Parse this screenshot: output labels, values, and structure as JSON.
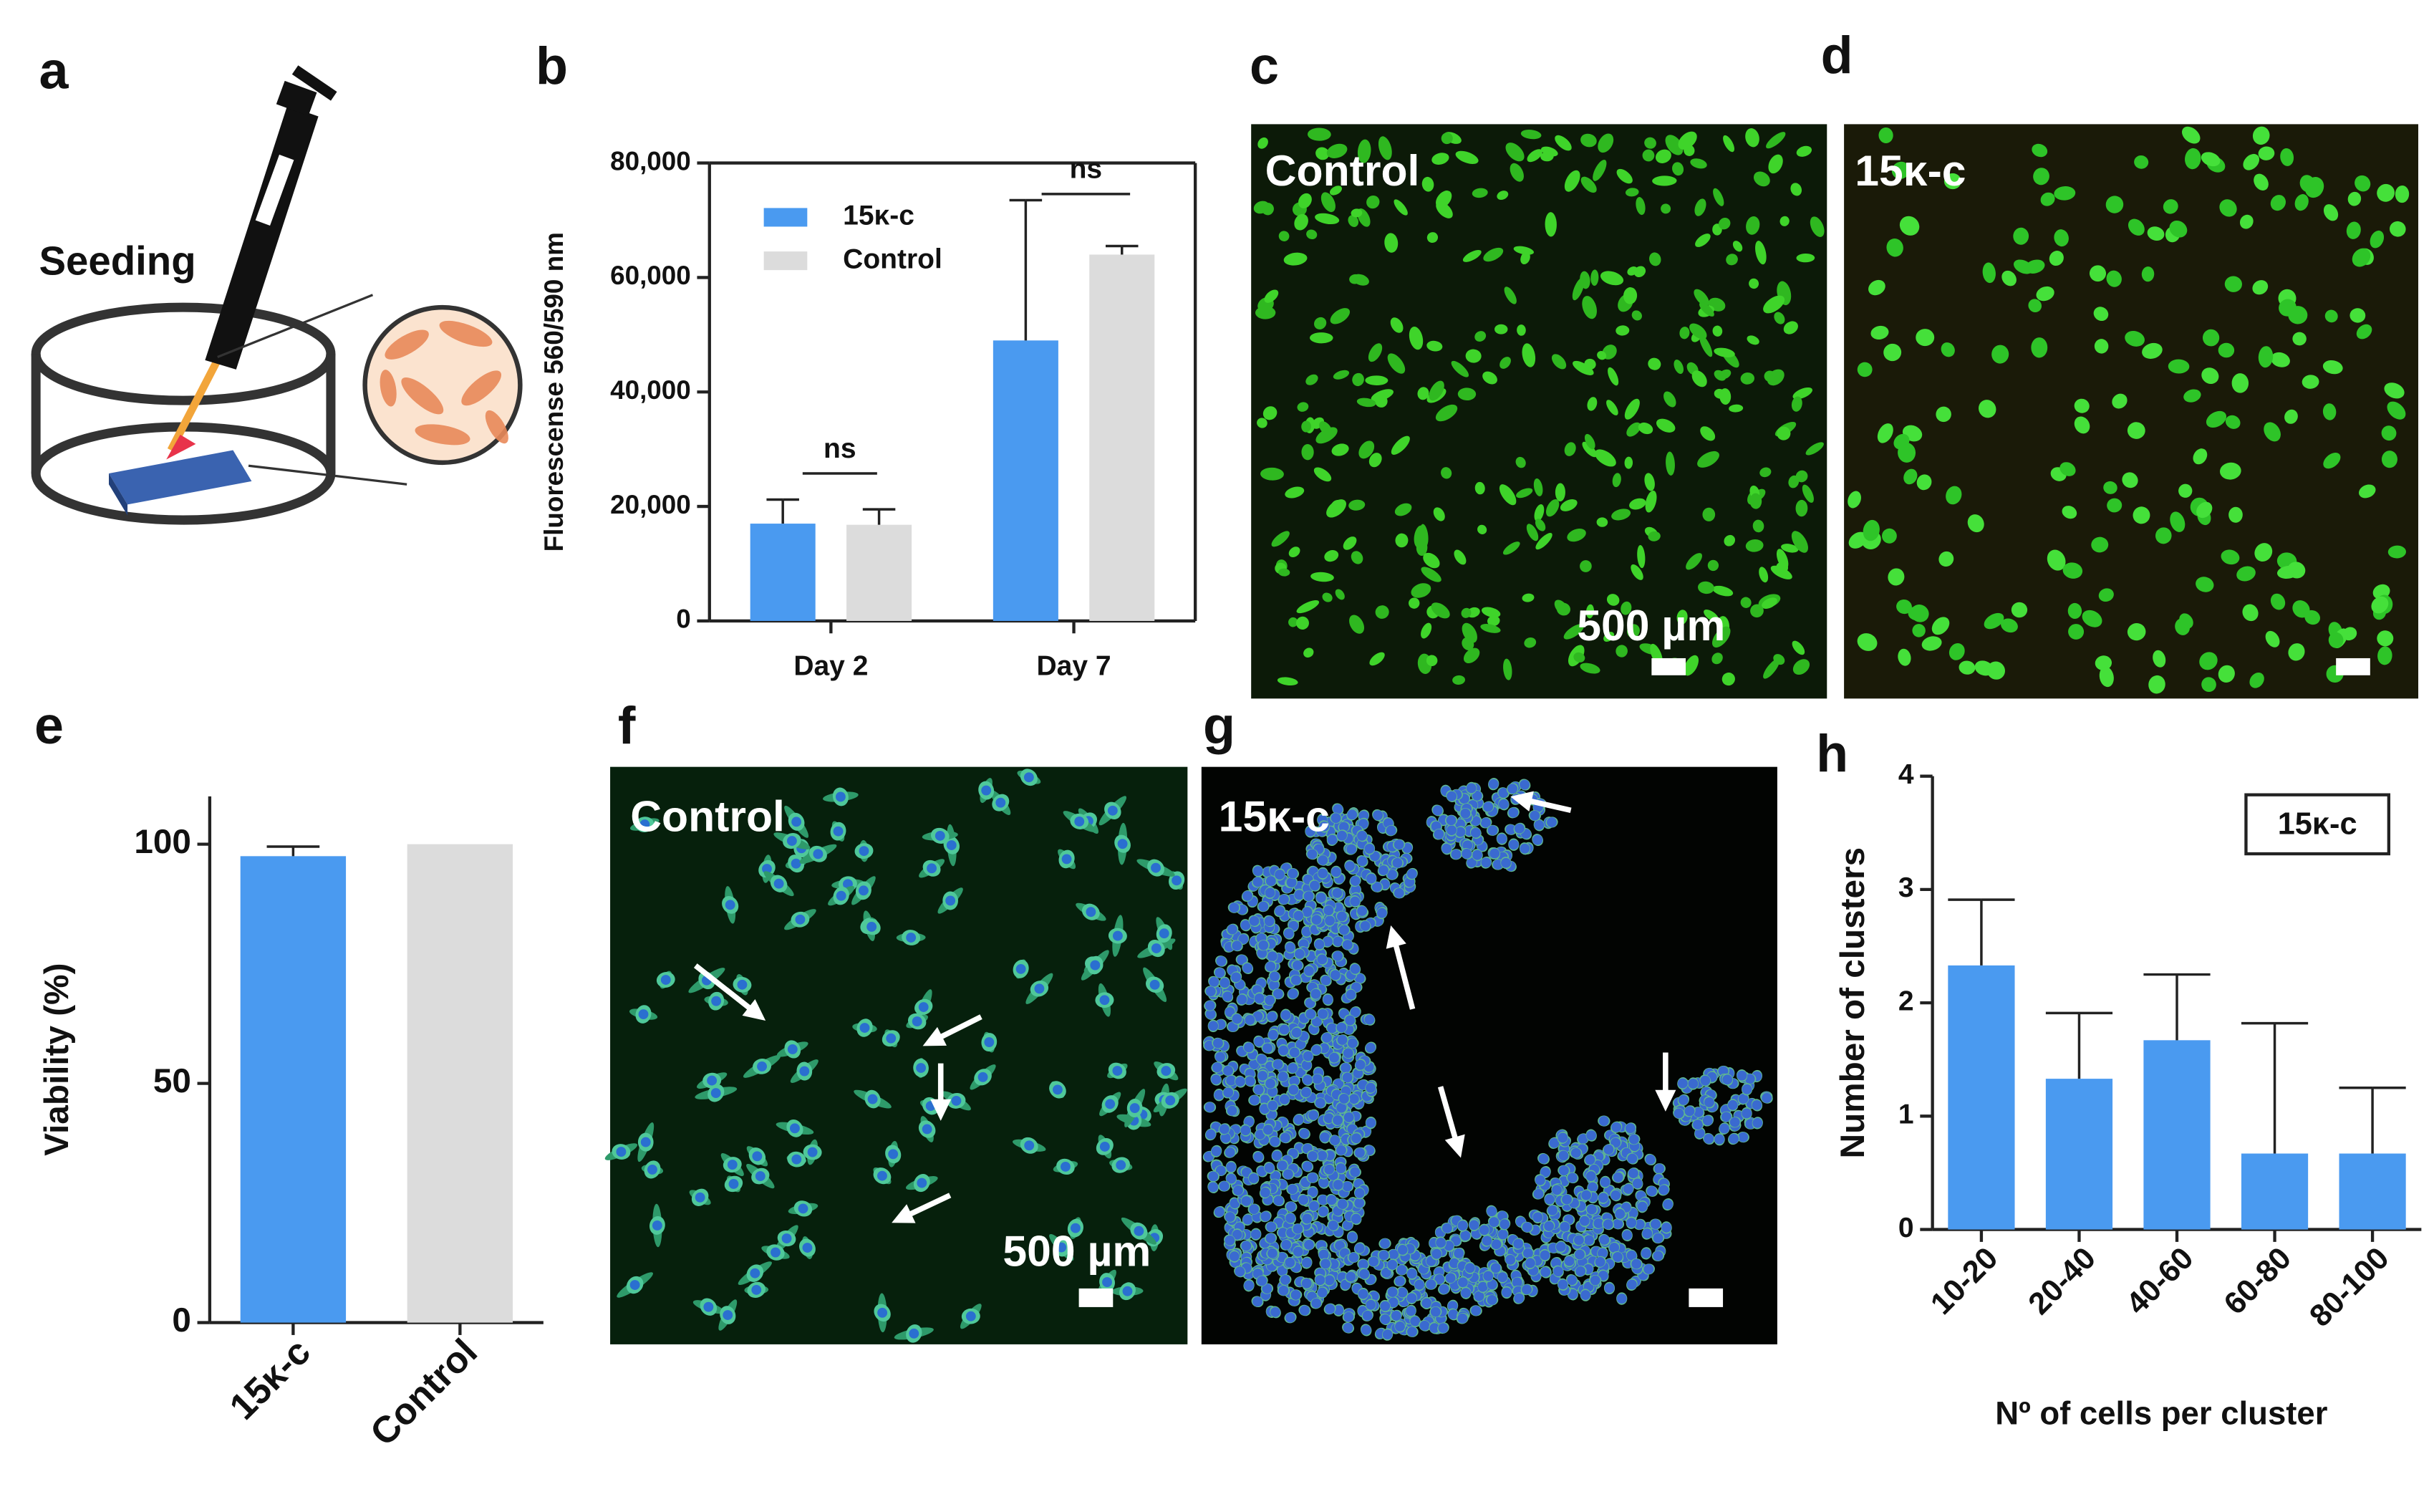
{
  "panel_labels": [
    "a",
    "b",
    "c",
    "d",
    "e",
    "f",
    "g",
    "h"
  ],
  "schematic": {
    "label": "Seeding"
  },
  "micrographs": [
    {
      "label": "Control",
      "scale_text": "500 µm"
    },
    {
      "label": "15κ-c"
    },
    {
      "label": "Control",
      "scale_text": "500 µm"
    },
    {
      "label": "15κ-c"
    }
  ],
  "chart_data": [
    {
      "type": "bar",
      "y_label": "Fluorescense 560/590 nm",
      "categories": [
        "Day 2",
        "Day 7"
      ],
      "series": [
        {
          "name": "15κ-c",
          "color": "#4a9af0",
          "values": [
            17000,
            49000
          ],
          "errors": [
            4200,
            24500
          ]
        },
        {
          "name": "Control",
          "color": "#dcdcdc",
          "values": [
            16800,
            64000
          ],
          "errors": [
            2700,
            1500
          ]
        }
      ],
      "ylim": [
        0,
        80000
      ],
      "yticks": [
        0,
        {
          "value": 20000,
          "label": "20,000"
        },
        {
          "value": 40000,
          "label": "40,000"
        },
        {
          "value": 60000,
          "label": "60,000"
        },
        {
          "value": 80000,
          "label": "80,000"
        }
      ],
      "annotations": [
        "ns",
        "ns"
      ]
    },
    {
      "type": "bar",
      "y_label": "Viability (%)",
      "categories": [
        "15κ-c",
        "Control"
      ],
      "values": [
        97.5,
        100
      ],
      "errors": [
        2,
        null
      ],
      "colors": [
        "#4a9af0",
        "#dcdcdc"
      ],
      "ylim": [
        0,
        110
      ],
      "yticks": [
        0,
        50,
        100
      ]
    },
    {
      "type": "bar",
      "y_label": "Number of clusters",
      "x_label": "Nº of cells per cluster",
      "categories": [
        "10-20",
        "20-40",
        "40-60",
        "60-80",
        "80-100"
      ],
      "series": [
        {
          "name": "15κ-c",
          "color": "#4a9af0",
          "values": [
            2.33,
            1.33,
            1.67,
            0.67,
            0.67
          ],
          "errors": [
            0.58,
            0.58,
            0.58,
            1.15,
            0.58
          ]
        }
      ],
      "ylim": [
        0,
        4
      ],
      "yticks": [
        0,
        1,
        2,
        3,
        4
      ]
    }
  ]
}
